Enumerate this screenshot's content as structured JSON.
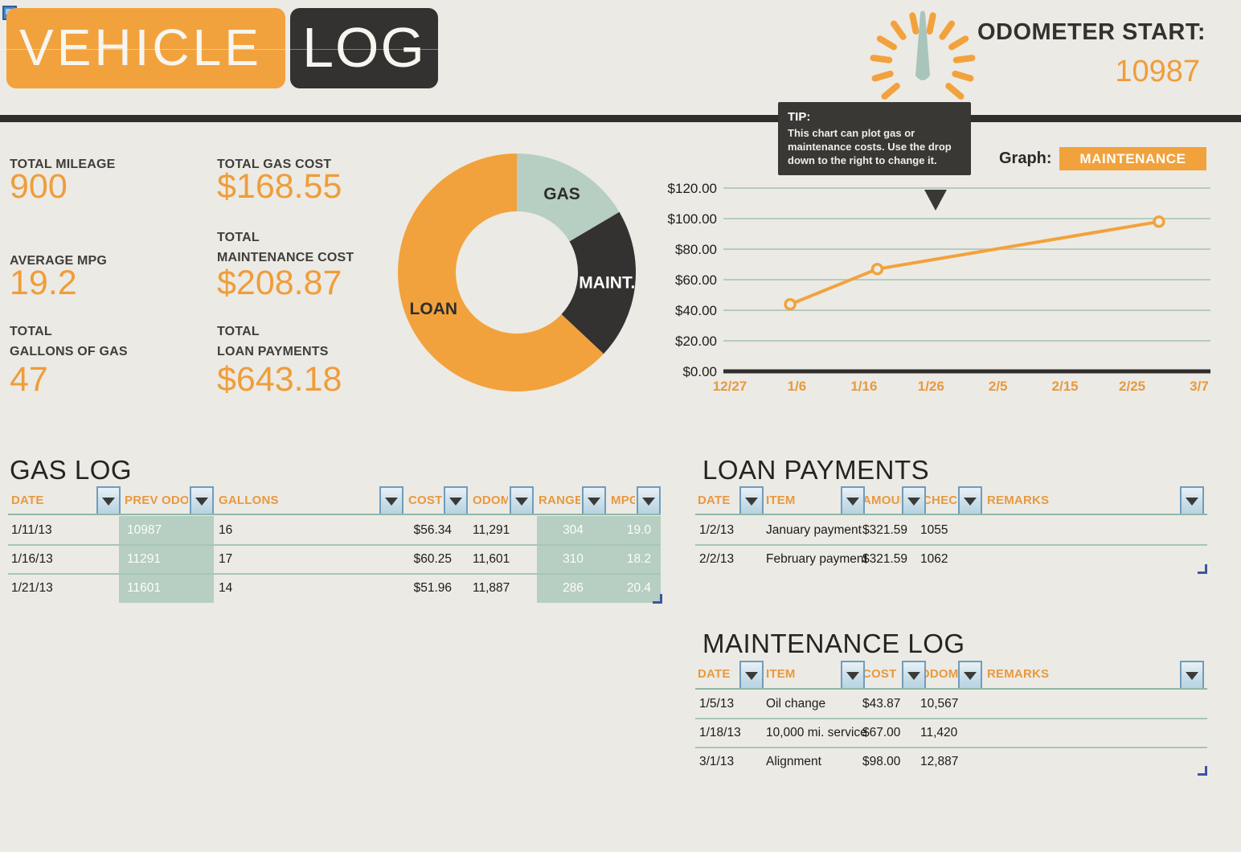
{
  "header": {
    "title_word1": "VEHICLE",
    "title_word2": "LOG",
    "odometer_label": "ODOMETER START:",
    "odometer_value": "10987"
  },
  "stats": {
    "col1": [
      {
        "label": "TOTAL MILEAGE",
        "value": "900"
      },
      {
        "label": "AVERAGE MPG",
        "value": "19.2"
      },
      {
        "label": "TOTAL\nGALLONS OF GAS",
        "value": "47"
      }
    ],
    "col2": [
      {
        "label": "TOTAL GAS COST",
        "value": "$168.55"
      },
      {
        "label": "TOTAL\nMAINTENANCE COST",
        "value": "$208.87"
      },
      {
        "label": "TOTAL\nLOAN PAYMENTS",
        "value": "$643.18"
      }
    ]
  },
  "tip": {
    "title": "TIP:",
    "body": "This chart can plot gas or maintenance costs. Use the  drop down to the right to change it."
  },
  "graph_selector": {
    "label": "Graph:",
    "value": "MAINTENANCE"
  },
  "chart_data": [
    {
      "type": "pie",
      "subtype": "donut",
      "slices": [
        {
          "label": "GAS",
          "value": 168.55,
          "color": "#b7cec2",
          "label_color": "#2e2d2b"
        },
        {
          "label": "MAINT.",
          "value": 208.87,
          "color": "#333230",
          "label_color": "#ffffff"
        },
        {
          "label": "LOAN",
          "value": 643.18,
          "color": "#f2a23c",
          "label_color": "#2e2d2b"
        }
      ],
      "start_angle_deg": 0,
      "direction": "clockwise",
      "legend_position": "inside"
    },
    {
      "type": "line",
      "series": [
        {
          "name": "MAINTENANCE",
          "color": "#f2a23c",
          "points": [
            {
              "x": "1/5",
              "day": 9,
              "y": 43.87
            },
            {
              "x": "1/18",
              "day": 22,
              "y": 67.0
            },
            {
              "x": "3/1",
              "day": 64,
              "y": 98.0
            }
          ]
        }
      ],
      "x_ticks": [
        {
          "label": "12/27",
          "day": 0
        },
        {
          "label": "1/6",
          "day": 10
        },
        {
          "label": "1/16",
          "day": 20
        },
        {
          "label": "1/26",
          "day": 30
        },
        {
          "label": "2/5",
          "day": 40
        },
        {
          "label": "2/15",
          "day": 50
        },
        {
          "label": "2/25",
          "day": 60
        },
        {
          "label": "3/7",
          "day": 70
        }
      ],
      "y_ticks": [
        {
          "label": "$0.00",
          "value": 0
        },
        {
          "label": "$20.00",
          "value": 20
        },
        {
          "label": "$40.00",
          "value": 40
        },
        {
          "label": "$60.00",
          "value": 60
        },
        {
          "label": "$80.00",
          "value": 80
        },
        {
          "label": "$100.00",
          "value": 100
        },
        {
          "label": "$120.00",
          "value": 120
        }
      ],
      "ylim": [
        0,
        120
      ],
      "grid": true,
      "legend": "none"
    }
  ],
  "tables": {
    "gas_log": {
      "title": "GAS LOG",
      "columns": [
        "DATE",
        "PREV ODOM",
        "GALLONS",
        "COST",
        "ODOM",
        "RANGE",
        "MPG"
      ],
      "rows": [
        [
          "1/11/13",
          "10987",
          "16",
          "$56.34",
          "11,291",
          "304",
          "19.0"
        ],
        [
          "1/16/13",
          "11291",
          "17",
          "$60.25",
          "11,601",
          "310",
          "18.2"
        ],
        [
          "1/21/13",
          "11601",
          "14",
          "$51.96",
          "11,887",
          "286",
          "20.4"
        ]
      ]
    },
    "loan_payments": {
      "title": "LOAN PAYMENTS",
      "columns": [
        "DATE",
        "ITEM",
        "AMOUNT",
        "CHECK",
        "REMARKS"
      ],
      "rows": [
        [
          "1/2/13",
          "January payment",
          "$321.59",
          "1055",
          ""
        ],
        [
          "2/2/13",
          "February payment",
          "$321.59",
          "1062",
          ""
        ]
      ]
    },
    "maintenance_log": {
      "title": "MAINTENANCE LOG",
      "columns": [
        "DATE",
        "ITEM",
        "COST",
        "ODOM",
        "REMARKS"
      ],
      "rows": [
        [
          "1/5/13",
          "Oil change",
          "$43.87",
          "10,567",
          ""
        ],
        [
          "1/18/13",
          "10,000 mi. service",
          "$67.00",
          "11,420",
          ""
        ],
        [
          "3/1/13",
          "Alignment",
          "$98.00",
          "12,887",
          ""
        ]
      ]
    }
  },
  "colors": {
    "accent_orange": "#f2a23c",
    "dark": "#333230",
    "sage_green": "#b7cec2",
    "header_text_orange": "#e8993e",
    "background": "#eceae4"
  }
}
